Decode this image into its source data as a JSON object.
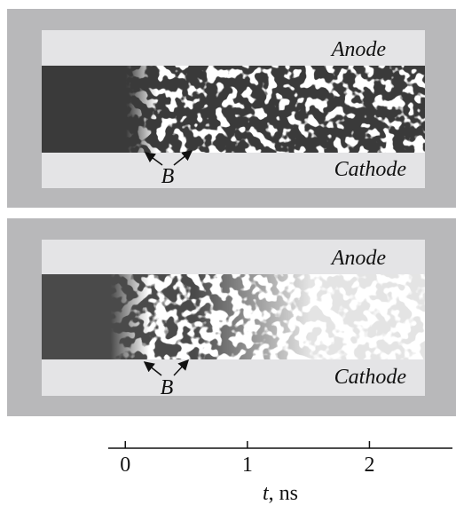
{
  "panels": [
    {
      "anode": "Anode",
      "cathode": "Cathode",
      "marker": "B"
    },
    {
      "anode": "Anode",
      "cathode": "Cathode",
      "marker": "B"
    }
  ],
  "axis": {
    "label_parts": [
      "t",
      ", ns"
    ],
    "xlim": [
      -0.14,
      2.68
    ],
    "xticks": [
      0,
      1,
      2
    ]
  }
}
